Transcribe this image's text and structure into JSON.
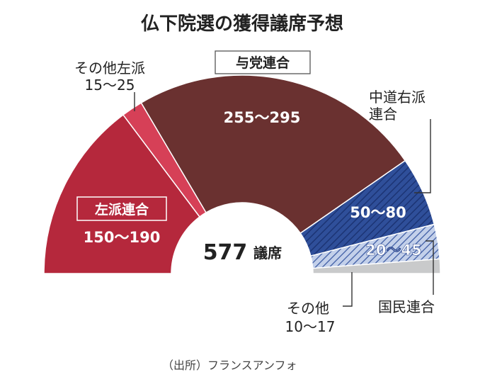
{
  "chart_data": {
    "type": "pie",
    "variant": "semicircle-parliament",
    "title": "仏下院選の獲得議席予想",
    "total_seats": "577",
    "total_unit": "議席",
    "source": "（出所）フランスアンフォ",
    "segments": [
      {
        "name": "左派連合",
        "range": "150～190",
        "low": 150,
        "high": 190,
        "color": "#b5283c",
        "boxed": true
      },
      {
        "name": "その他左派",
        "range": "15～25",
        "low": 15,
        "high": 25,
        "color": "#d64057",
        "boxed": false
      },
      {
        "name": "与党連合",
        "range": "255～295",
        "low": 255,
        "high": 295,
        "color": "#6a3130",
        "boxed": true
      },
      {
        "name": "中道右派連合",
        "label_lines": [
          "中道右派",
          "連合"
        ],
        "range": "50～80",
        "low": 50,
        "high": 80,
        "color": "#2f4f9a",
        "pattern": "hatch",
        "boxed": false
      },
      {
        "name": "国民連合",
        "range": "20～45",
        "low": 20,
        "high": 45,
        "color": "#aebfe0",
        "pattern": "hatch",
        "boxed": false
      },
      {
        "name": "その他",
        "range": "10～17",
        "low": 10,
        "high": 17,
        "color": "#c9cacb",
        "boxed": false
      }
    ]
  }
}
